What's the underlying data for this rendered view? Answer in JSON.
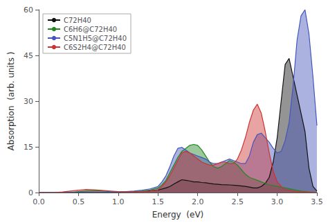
{
  "chart_data": {
    "type": "area",
    "xlabel": "Energy  (eV)",
    "ylabel": "Absorption  (arb. units )",
    "xlim": [
      0.0,
      3.5
    ],
    "ylim": [
      0,
      60
    ],
    "xticks": [
      {
        "value": 0.0,
        "label": "0.0"
      },
      0.5,
      {
        "value": 1.0,
        "label": "1.0"
      },
      1.5,
      {
        "value": 2.0,
        "label": "2.0"
      },
      2.5,
      {
        "value": 3.0,
        "label": "3.0"
      },
      3.5
    ],
    "yticks": [
      0,
      15,
      30,
      45,
      60
    ],
    "grid": false,
    "legend": "upper left",
    "series": [
      {
        "name": "C72H40",
        "color": "#111111",
        "x": [
          0.0,
          0.2,
          0.4,
          0.6,
          0.8,
          1.0,
          1.1,
          1.2,
          1.3,
          1.4,
          1.5,
          1.6,
          1.65,
          1.7,
          1.75,
          1.8,
          1.85,
          1.9,
          1.95,
          2.0,
          2.05,
          2.1,
          2.15,
          2.2,
          2.3,
          2.4,
          2.5,
          2.6,
          2.65,
          2.7,
          2.75,
          2.8,
          2.85,
          2.9,
          2.95,
          3.0,
          3.05,
          3.1,
          3.15,
          3.2,
          3.25,
          3.3,
          3.35,
          3.4,
          3.45,
          3.5
        ],
        "values": [
          0.0,
          0.0,
          0.0,
          0.0,
          0.0,
          0.1,
          0.2,
          0.3,
          0.4,
          0.6,
          0.8,
          1.5,
          2.0,
          2.8,
          3.5,
          4.2,
          4.0,
          3.8,
          3.5,
          3.5,
          3.3,
          3.2,
          3.0,
          2.8,
          2.6,
          2.5,
          2.3,
          2.0,
          1.8,
          1.5,
          1.5,
          2.0,
          3.0,
          5.0,
          10.0,
          18.0,
          30.0,
          42.0,
          44.0,
          38.0,
          32.0,
          26.0,
          20.0,
          8.0,
          2.0,
          0.5
        ]
      },
      {
        "name": "C6H6@C72H40",
        "color": "#228822",
        "x": [
          0.0,
          0.2,
          0.4,
          0.5,
          0.6,
          0.7,
          0.8,
          0.9,
          1.0,
          1.1,
          1.2,
          1.3,
          1.4,
          1.5,
          1.55,
          1.6,
          1.65,
          1.7,
          1.75,
          1.8,
          1.85,
          1.9,
          1.95,
          2.0,
          2.05,
          2.1,
          2.15,
          2.2,
          2.25,
          2.3,
          2.35,
          2.4,
          2.45,
          2.5,
          2.55,
          2.6,
          2.65,
          2.7,
          2.75,
          2.8,
          2.9,
          3.0,
          3.1,
          3.2,
          3.3,
          3.4,
          3.5
        ],
        "values": [
          0.0,
          0.0,
          0.0,
          0.3,
          0.5,
          0.6,
          0.5,
          0.3,
          0.2,
          0.2,
          0.3,
          0.5,
          0.8,
          1.5,
          2.5,
          4.0,
          6.5,
          9.0,
          11.5,
          13.5,
          14.5,
          15.5,
          15.8,
          15.5,
          14.0,
          12.0,
          10.0,
          8.5,
          8.0,
          8.5,
          9.5,
          10.5,
          10.0,
          9.0,
          7.5,
          6.0,
          5.0,
          4.5,
          4.0,
          3.5,
          2.5,
          2.0,
          1.5,
          1.0,
          0.5,
          0.2,
          0.0
        ]
      },
      {
        "name": "C5N1H5@C72H40",
        "color": "#4455bb",
        "x": [
          0.0,
          0.2,
          0.4,
          0.6,
          0.8,
          1.0,
          1.1,
          1.2,
          1.3,
          1.4,
          1.5,
          1.55,
          1.6,
          1.65,
          1.7,
          1.75,
          1.8,
          1.85,
          1.9,
          1.95,
          2.0,
          2.05,
          2.1,
          2.15,
          2.2,
          2.25,
          2.3,
          2.35,
          2.4,
          2.45,
          2.5,
          2.55,
          2.6,
          2.65,
          2.7,
          2.75,
          2.8,
          2.85,
          2.9,
          2.95,
          3.0,
          3.05,
          3.1,
          3.15,
          3.2,
          3.25,
          3.3,
          3.35,
          3.4,
          3.45,
          3.5
        ],
        "values": [
          0.0,
          0.0,
          0.0,
          0.1,
          0.1,
          0.2,
          0.3,
          0.5,
          0.8,
          1.2,
          2.0,
          3.5,
          5.5,
          8.5,
          12.0,
          14.5,
          14.8,
          14.0,
          13.0,
          12.5,
          12.0,
          11.5,
          11.0,
          10.0,
          9.5,
          9.5,
          10.0,
          10.5,
          11.0,
          10.5,
          10.0,
          9.5,
          9.5,
          12.0,
          16.5,
          19.0,
          19.5,
          18.0,
          16.5,
          14.5,
          13.0,
          13.5,
          17.0,
          23.0,
          35.0,
          50.0,
          58.0,
          60.0,
          52.0,
          38.0,
          22.0
        ]
      },
      {
        "name": "C6S2H4@C72H40",
        "color": "#cc3333",
        "x": [
          0.0,
          0.2,
          0.3,
          0.4,
          0.5,
          0.6,
          0.7,
          0.8,
          0.9,
          1.0,
          1.1,
          1.2,
          1.3,
          1.4,
          1.5,
          1.55,
          1.6,
          1.65,
          1.7,
          1.75,
          1.8,
          1.85,
          1.9,
          1.95,
          2.0,
          2.05,
          2.1,
          2.15,
          2.2,
          2.25,
          2.3,
          2.35,
          2.4,
          2.45,
          2.5,
          2.55,
          2.6,
          2.65,
          2.7,
          2.75,
          2.8,
          2.85,
          2.9,
          2.95,
          3.0,
          3.05,
          3.1,
          3.2,
          3.3,
          3.4,
          3.5
        ],
        "values": [
          0.0,
          0.0,
          0.2,
          0.5,
          0.8,
          1.0,
          0.9,
          0.7,
          0.5,
          0.3,
          0.2,
          0.2,
          0.3,
          0.5,
          0.9,
          2.0,
          3.5,
          5.5,
          8.0,
          10.5,
          13.0,
          13.5,
          13.0,
          12.0,
          11.0,
          10.0,
          9.5,
          9.0,
          9.0,
          9.5,
          10.0,
          10.0,
          9.5,
          9.5,
          11.0,
          14.0,
          18.0,
          23.0,
          27.0,
          29.0,
          26.0,
          20.0,
          13.0,
          7.0,
          3.5,
          2.0,
          1.0,
          0.5,
          0.2,
          0.1,
          0.0
        ]
      }
    ]
  }
}
